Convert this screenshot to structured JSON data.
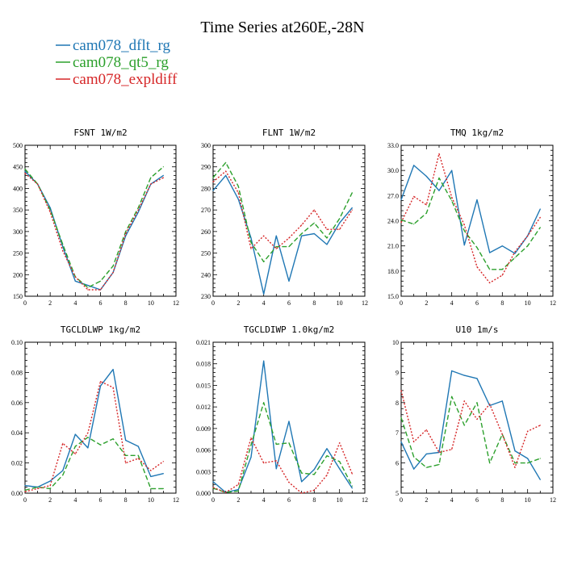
{
  "title": "Time Series at260E,-28N",
  "legend": [
    {
      "label": "cam078_dflt_rg",
      "color": "#1f77b4",
      "dash": ""
    },
    {
      "label": "cam078_qt5_rg",
      "color": "#2ca02c",
      "dash": "6,3"
    },
    {
      "label": "cam078_expldiff",
      "color": "#d62728",
      "dash": "2,2"
    }
  ],
  "chart_data": [
    {
      "type": "line",
      "title": "FSNT  1W/m2",
      "x": [
        0,
        1,
        2,
        3,
        4,
        5,
        6,
        7,
        8,
        9,
        10,
        11
      ],
      "xlim": [
        0,
        12
      ],
      "xticks": [
        "0",
        "2",
        "4",
        "6",
        "8",
        "10",
        "12"
      ],
      "ylim": [
        150,
        500
      ],
      "yticks": [
        "150",
        "200",
        "250",
        "300",
        "350",
        "400",
        "450",
        "500"
      ],
      "series": [
        {
          "name": "cam078_dflt_rg",
          "values": [
            440,
            410,
            355,
            265,
            185,
            175,
            165,
            205,
            290,
            345,
            410,
            430
          ]
        },
        {
          "name": "cam078_qt5_rg",
          "values": [
            445,
            410,
            350,
            270,
            195,
            170,
            185,
            220,
            300,
            355,
            425,
            450
          ]
        },
        {
          "name": "cam078_expldiff",
          "values": [
            435,
            410,
            345,
            255,
            195,
            165,
            165,
            205,
            295,
            350,
            410,
            425
          ]
        }
      ]
    },
    {
      "type": "line",
      "title": "FLNT  1W/m2",
      "x": [
        0,
        1,
        2,
        3,
        4,
        5,
        6,
        7,
        8,
        9,
        10,
        11
      ],
      "xlim": [
        0,
        12
      ],
      "xticks": [
        "0",
        "2",
        "4",
        "6",
        "8",
        "10",
        "12"
      ],
      "ylim": [
        230,
        300
      ],
      "yticks": [
        "230",
        "240",
        "250",
        "260",
        "270",
        "280",
        "290",
        "300"
      ],
      "series": [
        {
          "name": "cam078_dflt_rg",
          "values": [
            279,
            286,
            275,
            257,
            231,
            258,
            237,
            258,
            259,
            254,
            264,
            271
          ]
        },
        {
          "name": "cam078_qt5_rg",
          "values": [
            285,
            292,
            281,
            255,
            246,
            253,
            253,
            259,
            264,
            257,
            266,
            278
          ]
        },
        {
          "name": "cam078_expldiff",
          "values": [
            283,
            288,
            278,
            252,
            258,
            252,
            257,
            263,
            270,
            261,
            261,
            270
          ]
        }
      ]
    },
    {
      "type": "line",
      "title": "TMQ  1kg/m2",
      "x": [
        0,
        1,
        2,
        3,
        4,
        5,
        6,
        7,
        8,
        9,
        10,
        11
      ],
      "xlim": [
        0,
        12
      ],
      "xticks": [
        "0",
        "2",
        "4",
        "6",
        "8",
        "10",
        "12"
      ],
      "ylim": [
        15.0,
        33.0
      ],
      "yticks": [
        "15.0",
        "18.0",
        "21.0",
        "24.0",
        "27.0",
        "30.0",
        "33.0"
      ],
      "series": [
        {
          "name": "cam078_dflt_rg",
          "values": [
            26.5,
            30.6,
            29.3,
            27.6,
            30.0,
            21.1,
            26.5,
            20.2,
            21.0,
            20.1,
            22.2,
            25.4
          ]
        },
        {
          "name": "cam078_qt5_rg",
          "values": [
            24.1,
            23.6,
            24.9,
            29.1,
            26.4,
            22.8,
            20.8,
            18.2,
            18.2,
            19.6,
            21.0,
            23.2
          ]
        },
        {
          "name": "cam078_expldiff",
          "values": [
            23.8,
            26.9,
            25.9,
            32.0,
            26.8,
            23.5,
            18.5,
            16.6,
            17.5,
            20.3,
            22.2,
            24.4
          ]
        }
      ]
    },
    {
      "type": "line",
      "title": "TGCLDLWP  1kg/m2",
      "x": [
        0,
        1,
        2,
        3,
        4,
        5,
        6,
        7,
        8,
        9,
        10,
        11
      ],
      "xlim": [
        0,
        12
      ],
      "xticks": [
        "0",
        "2",
        "4",
        "6",
        "8",
        "10",
        "12"
      ],
      "ylim": [
        0.0,
        0.1
      ],
      "yticks": [
        "0.00",
        "0.02",
        "0.04",
        "0.06",
        "0.08",
        "0.10"
      ],
      "series": [
        {
          "name": "cam078_dflt_rg",
          "values": [
            0.005,
            0.004,
            0.008,
            0.015,
            0.039,
            0.03,
            0.071,
            0.082,
            0.035,
            0.031,
            0.011,
            0.013
          ]
        },
        {
          "name": "cam078_qt5_rg",
          "values": [
            0.002,
            0.004,
            0.003,
            0.012,
            0.031,
            0.037,
            0.032,
            0.036,
            0.025,
            0.025,
            0.003,
            0.003
          ]
        },
        {
          "name": "cam078_expldiff",
          "values": [
            0.001,
            0.003,
            0.005,
            0.033,
            0.026,
            0.04,
            0.074,
            0.07,
            0.02,
            0.023,
            0.015,
            0.021
          ]
        }
      ]
    },
    {
      "type": "line",
      "title": "TGCLDIWP  1.0kg/m2",
      "x": [
        0,
        1,
        2,
        3,
        4,
        5,
        6,
        7,
        8,
        9,
        10,
        11
      ],
      "xlim": [
        0,
        12
      ],
      "xticks": [
        "0",
        "2",
        "4",
        "6",
        "8",
        "10",
        "12"
      ],
      "ylim": [
        0.0,
        0.021
      ],
      "yticks": [
        "0.000",
        "0.003",
        "0.006",
        "0.009",
        "0.012",
        "0.015",
        "0.018",
        "0.021"
      ],
      "series": [
        {
          "name": "cam078_dflt_rg",
          "values": [
            0.0016,
            0.0001,
            0.0005,
            0.005,
            0.0184,
            0.0034,
            0.01,
            0.0016,
            0.0033,
            0.0062,
            0.0034,
            0.0007
          ]
        },
        {
          "name": "cam078_qt5_rg",
          "values": [
            0.0007,
            0.0001,
            0.0003,
            0.0067,
            0.0126,
            0.0068,
            0.007,
            0.0028,
            0.0026,
            0.0052,
            0.0044,
            0.001
          ]
        },
        {
          "name": "cam078_expldiff",
          "values": [
            0.0008,
            0.0001,
            0.0012,
            0.0077,
            0.0042,
            0.0045,
            0.0015,
            0.0,
            0.0004,
            0.0025,
            0.007,
            0.0027
          ]
        }
      ]
    },
    {
      "type": "line",
      "title": "U10  1m/s",
      "x": [
        0,
        1,
        2,
        3,
        4,
        5,
        6,
        7,
        8,
        9,
        10,
        11
      ],
      "xlim": [
        0,
        12
      ],
      "xticks": [
        "0",
        "2",
        "4",
        "6",
        "8",
        "10",
        "12"
      ],
      "ylim": [
        5,
        10
      ],
      "yticks": [
        "5",
        "6",
        "7",
        "8",
        "9",
        "10"
      ],
      "series": [
        {
          "name": "cam078_dflt_rg",
          "values": [
            6.7,
            5.8,
            6.3,
            6.35,
            9.05,
            8.9,
            8.8,
            7.9,
            8.05,
            6.4,
            6.15,
            5.45
          ]
        },
        {
          "name": "cam078_qt5_rg",
          "values": [
            7.5,
            6.2,
            5.85,
            5.95,
            8.2,
            7.25,
            8.0,
            6.0,
            6.95,
            6.0,
            6.0,
            6.15
          ]
        },
        {
          "name": "cam078_expldiff",
          "values": [
            8.4,
            6.7,
            7.1,
            6.35,
            6.45,
            8.05,
            7.45,
            7.95,
            6.95,
            5.85,
            7.05,
            7.25
          ]
        }
      ]
    }
  ]
}
